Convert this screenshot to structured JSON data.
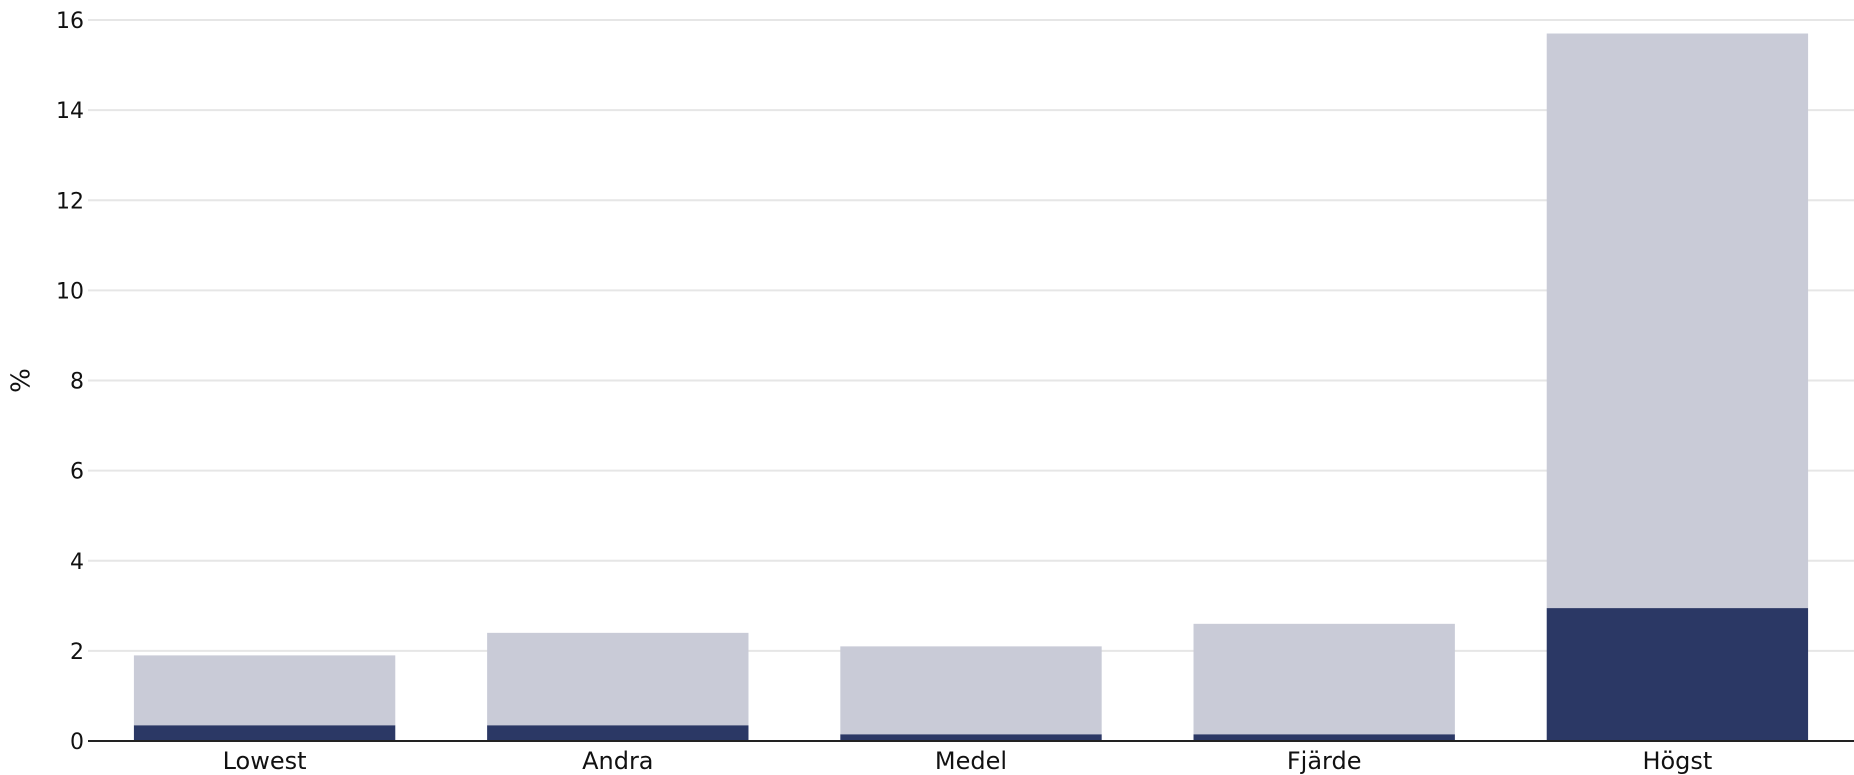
{
  "chart_data": {
    "type": "bar",
    "stacked": true,
    "categories": [
      "Lowest",
      "Andra",
      "Medel",
      "Fjärde",
      "Högst"
    ],
    "series": [
      {
        "values": [
          0.35,
          0.35,
          0.15,
          0.15,
          2.95
        ],
        "color": "#2b3865"
      },
      {
        "values": [
          1.55,
          2.05,
          1.95,
          2.45,
          12.75
        ],
        "color": "#c9cbd7"
      }
    ],
    "ylabel": "%",
    "xlabel": "",
    "ylim": [
      0,
      16
    ],
    "yticks": [
      0,
      2,
      4,
      6,
      8,
      10,
      12,
      14,
      16
    ],
    "grid": true,
    "colors": {
      "grid": "#e6e6e6",
      "axis": "#222222",
      "text": "#111111"
    }
  }
}
